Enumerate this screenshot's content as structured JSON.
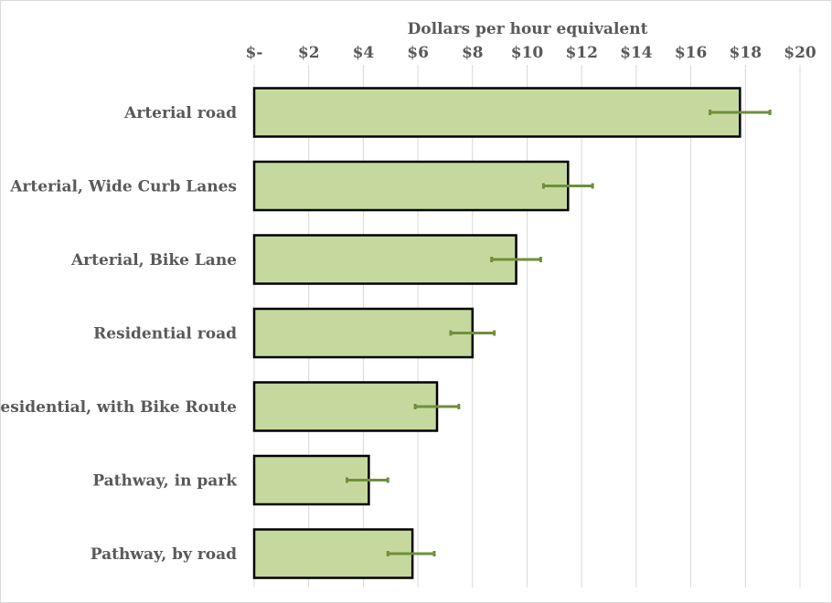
{
  "chart_data": {
    "type": "bar",
    "orientation": "horizontal",
    "title": "",
    "xlabel": "Dollars per hour equivalent",
    "ylabel": "",
    "x_axis_position": "top",
    "xlim": [
      0,
      20
    ],
    "x_ticks": [
      0,
      2,
      4,
      6,
      8,
      10,
      12,
      14,
      16,
      18,
      20
    ],
    "x_tick_labels": [
      "$-",
      "$2",
      "$4",
      "$6",
      "$8",
      "$10",
      "$12",
      "$14",
      "$16",
      "$18",
      "$20"
    ],
    "grid": "vertical",
    "categories": [
      "Arterial road",
      "Arterial, Wide Curb Lanes",
      "Arterial, Bike Lane",
      "Residential road",
      "Residential, with Bike Route",
      "Pathway, in park",
      "Pathway, by road"
    ],
    "values": [
      17.8,
      11.5,
      9.6,
      8.0,
      6.7,
      4.2,
      5.8
    ],
    "error_low": [
      16.7,
      10.6,
      8.7,
      7.2,
      5.9,
      3.4,
      4.9
    ],
    "error_high": [
      18.9,
      12.4,
      10.5,
      8.8,
      7.5,
      4.9,
      6.6
    ],
    "colors": {
      "bar_fill": "#c5d99f",
      "bar_stroke": "#000000",
      "error_bar": "#6f8f3a",
      "grid": "#d9d9d9",
      "text": "#595959"
    }
  }
}
